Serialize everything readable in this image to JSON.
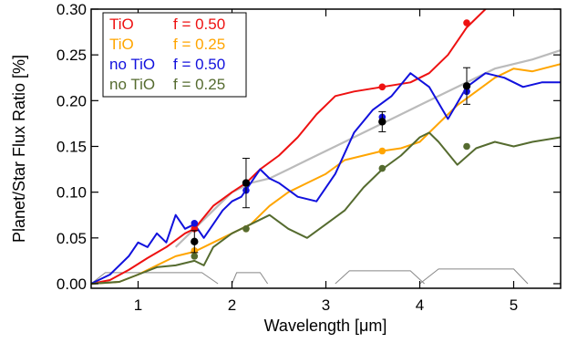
{
  "chart_data": {
    "type": "line",
    "title": "",
    "xlabel": "Wavelength [μm]",
    "ylabel": "Planet/Star Flux Ratio [%]",
    "xlim": [
      0.5,
      5.5
    ],
    "ylim": [
      -0.005,
      0.3
    ],
    "xticks": [
      1,
      2,
      3,
      4,
      5
    ],
    "xtick_labels": [
      "1",
      "2",
      "3",
      "4",
      "5"
    ],
    "yticks": [
      0.0,
      0.05,
      0.1,
      0.15,
      0.2,
      0.25,
      0.3
    ],
    "ytick_labels": [
      "0.00",
      "0.05",
      "0.10",
      "0.15",
      "0.20",
      "0.25",
      "0.30"
    ],
    "grid": false,
    "legend_position": "top-left",
    "series": [
      {
        "name": "TiO      f = 0.50",
        "color": "#ee1111",
        "x": [
          0.5,
          0.7,
          0.9,
          1.1,
          1.3,
          1.5,
          1.6,
          1.8,
          2.0,
          2.15,
          2.3,
          2.5,
          2.7,
          2.9,
          3.1,
          3.3,
          3.6,
          3.9,
          4.1,
          4.3,
          4.5,
          4.7,
          4.9,
          5.1,
          5.3,
          5.5
        ],
        "y": [
          0.0,
          0.004,
          0.015,
          0.028,
          0.04,
          0.055,
          0.06,
          0.085,
          0.1,
          0.11,
          0.125,
          0.14,
          0.16,
          0.185,
          0.205,
          0.21,
          0.215,
          0.22,
          0.23,
          0.25,
          0.28,
          0.3,
          0.32,
          0.32,
          0.315,
          0.32
        ]
      },
      {
        "name": "TiO      f = 0.25",
        "color": "#ffa500",
        "x": [
          0.5,
          0.8,
          1.0,
          1.2,
          1.4,
          1.6,
          1.8,
          2.0,
          2.2,
          2.4,
          2.6,
          2.8,
          3.0,
          3.2,
          3.4,
          3.6,
          3.8,
          4.0,
          4.2,
          4.4,
          4.6,
          4.8,
          5.0,
          5.2,
          5.5
        ],
        "y": [
          0.0,
          0.002,
          0.01,
          0.02,
          0.03,
          0.035,
          0.045,
          0.055,
          0.065,
          0.085,
          0.1,
          0.11,
          0.12,
          0.135,
          0.14,
          0.145,
          0.148,
          0.155,
          0.175,
          0.195,
          0.21,
          0.225,
          0.235,
          0.232,
          0.24
        ]
      },
      {
        "name": "no TiO f = 0.50",
        "color": "#1111dd",
        "x": [
          0.5,
          0.7,
          0.9,
          1.0,
          1.1,
          1.2,
          1.3,
          1.4,
          1.5,
          1.6,
          1.7,
          1.8,
          1.9,
          2.0,
          2.1,
          2.2,
          2.3,
          2.4,
          2.5,
          2.7,
          2.9,
          3.1,
          3.3,
          3.5,
          3.7,
          3.9,
          4.1,
          4.3,
          4.5,
          4.7,
          4.9,
          5.1,
          5.3,
          5.5
        ],
        "y": [
          0.0,
          0.01,
          0.03,
          0.045,
          0.04,
          0.055,
          0.045,
          0.075,
          0.06,
          0.065,
          0.05,
          0.065,
          0.08,
          0.09,
          0.095,
          0.11,
          0.125,
          0.115,
          0.11,
          0.095,
          0.09,
          0.12,
          0.165,
          0.19,
          0.205,
          0.23,
          0.215,
          0.18,
          0.215,
          0.23,
          0.225,
          0.215,
          0.22,
          0.22
        ]
      },
      {
        "name": "no TiO f = 0.25",
        "color": "#556b2f",
        "x": [
          0.5,
          0.8,
          1.0,
          1.2,
          1.4,
          1.6,
          1.7,
          1.8,
          2.0,
          2.2,
          2.4,
          2.6,
          2.8,
          3.0,
          3.2,
          3.4,
          3.6,
          3.8,
          4.0,
          4.1,
          4.2,
          4.4,
          4.6,
          4.8,
          5.0,
          5.2,
          5.5
        ],
        "y": [
          0.0,
          0.002,
          0.01,
          0.018,
          0.02,
          0.025,
          0.02,
          0.04,
          0.055,
          0.065,
          0.075,
          0.06,
          0.05,
          0.065,
          0.08,
          0.105,
          0.125,
          0.14,
          0.16,
          0.165,
          0.155,
          0.13,
          0.148,
          0.155,
          0.15,
          0.155,
          0.16
        ]
      }
    ],
    "spectrum": {
      "color": "#bbbbbb",
      "x": [
        1.4,
        1.6,
        1.8,
        2.0,
        2.2,
        2.4,
        2.6,
        2.8,
        3.0,
        3.2,
        3.4,
        3.6,
        3.8,
        4.0,
        4.2,
        4.4,
        4.6,
        4.8,
        5.0,
        5.2,
        5.5
      ],
      "y": [
        0.04,
        0.06,
        0.08,
        0.1,
        0.11,
        0.115,
        0.125,
        0.135,
        0.145,
        0.155,
        0.165,
        0.175,
        0.185,
        0.195,
        0.205,
        0.215,
        0.225,
        0.235,
        0.24,
        0.245,
        0.255
      ]
    },
    "model_points": [
      {
        "color": "#ee1111",
        "x": [
          1.6,
          2.15,
          3.6,
          4.5
        ],
        "y": [
          0.06,
          0.11,
          0.215,
          0.285
        ]
      },
      {
        "color": "#ffa500",
        "x": [
          1.6,
          2.15,
          3.6,
          4.5
        ],
        "y": [
          0.036,
          0.06,
          0.145,
          0.21
        ]
      },
      {
        "color": "#1111dd",
        "x": [
          1.6,
          2.15,
          3.6,
          4.5
        ],
        "y": [
          0.066,
          0.102,
          0.182,
          0.21
        ]
      },
      {
        "color": "#556b2f",
        "x": [
          1.6,
          2.15,
          3.6,
          4.5
        ],
        "y": [
          0.03,
          0.06,
          0.126,
          0.15
        ]
      }
    ],
    "observations": {
      "color": "#000000",
      "x": [
        1.6,
        2.15,
        3.6,
        4.5
      ],
      "y": [
        0.046,
        0.11,
        0.177,
        0.216
      ],
      "err": [
        0.012,
        0.027,
        0.011,
        0.02
      ]
    },
    "filter_curves": [
      {
        "x": [
          0.5,
          0.65,
          1.68,
          1.85
        ],
        "y": [
          0.0,
          0.012,
          0.012,
          0.0
        ]
      },
      {
        "x": [
          2.0,
          2.05,
          2.3,
          2.38
        ],
        "y": [
          0.0,
          0.012,
          0.012,
          0.0
        ]
      },
      {
        "x": [
          3.1,
          3.25,
          3.9,
          4.05
        ],
        "y": [
          0.0,
          0.014,
          0.014,
          0.0
        ]
      },
      {
        "x": [
          4.0,
          4.2,
          5.0,
          5.15
        ],
        "y": [
          0.0,
          0.016,
          0.016,
          0.0
        ]
      }
    ]
  },
  "legend": [
    {
      "series_label": "TiO",
      "f_label": "f = 0.50",
      "color": "#ee1111"
    },
    {
      "series_label": "TiO",
      "f_label": "f = 0.25",
      "color": "#ffa500"
    },
    {
      "series_label": "no TiO",
      "f_label": "f = 0.50",
      "color": "#1111dd"
    },
    {
      "series_label": "no TiO",
      "f_label": "f = 0.25",
      "color": "#556b2f"
    }
  ]
}
